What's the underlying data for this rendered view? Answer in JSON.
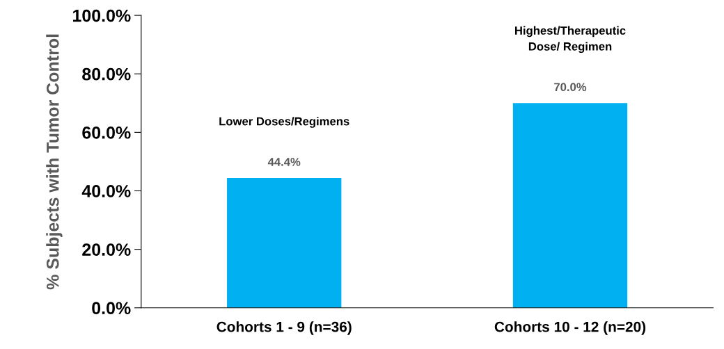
{
  "chart_data": {
    "type": "bar",
    "ylabel": "% Subjects with Tumor Control",
    "categories": [
      "Cohorts 1 - 9 (n=36)",
      "Cohorts 10 - 12 (n=20)"
    ],
    "values": [
      44.4,
      70.0
    ],
    "colors": [
      "#00b0f0",
      "#00b0f0"
    ],
    "value_labels": [
      "44.4%",
      "70.0%"
    ],
    "annotations": [
      "Lower Doses/Regimens",
      "Highest/Therapeutic\nDose/ Regimen"
    ],
    "ylim": [
      0,
      100
    ],
    "yticks": [
      {
        "value": 0,
        "label": "0.0%"
      },
      {
        "value": 20,
        "label": "20.0%"
      },
      {
        "value": 40,
        "label": "40.0%"
      },
      {
        "value": 60,
        "label": "60.0%"
      },
      {
        "value": 80,
        "label": "80.0%"
      },
      {
        "value": 100,
        "label": "100.0%"
      }
    ],
    "grid": false,
    "legend": false
  }
}
